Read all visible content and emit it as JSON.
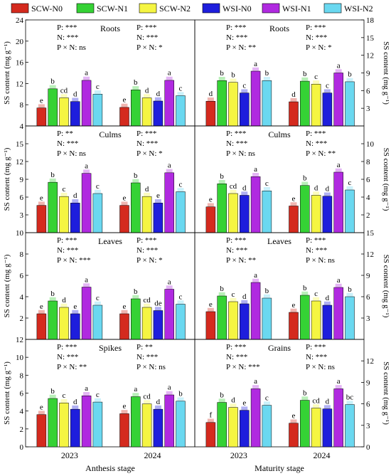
{
  "legend": [
    {
      "name": "SCW-N0",
      "color": "#d42a1e"
    },
    {
      "name": "SCW-N1",
      "color": "#35d235"
    },
    {
      "name": "SCW-N2",
      "color": "#f5f542"
    },
    {
      "name": "WSI-N0",
      "color": "#1e1edc"
    },
    {
      "name": "WSI-N1",
      "color": "#b02ae0"
    },
    {
      "name": "WSI-N2",
      "color": "#6ad8f0"
    }
  ],
  "y_axis_label": "SS content (mg g⁻¹)",
  "x_axis": {
    "years": [
      "2023",
      "2024"
    ],
    "stages": [
      "Anthesis stage",
      "Maturity stage"
    ]
  },
  "chart_data": [
    {
      "type": "bar",
      "row": 0,
      "col": 0,
      "organ": "Roots",
      "ylim": [
        4,
        24
      ],
      "ticks": [
        4,
        8,
        12,
        16,
        20,
        24
      ],
      "categories": [
        "2023",
        "2024"
      ],
      "series": [
        {
          "name": "SCW-N0",
          "values": [
            7.4,
            7.5
          ],
          "letters": [
            "e",
            "e"
          ]
        },
        {
          "name": "SCW-N1",
          "values": [
            11.0,
            10.8
          ],
          "letters": [
            "b",
            "b"
          ]
        },
        {
          "name": "SCW-N2",
          "values": [
            9.3,
            9.3
          ],
          "letters": [
            "cd",
            "d"
          ]
        },
        {
          "name": "WSI-N0",
          "values": [
            8.6,
            8.7
          ],
          "letters": [
            "d",
            "d"
          ]
        },
        {
          "name": "WSI-N1",
          "values": [
            12.6,
            12.6
          ],
          "letters": [
            "a",
            "a"
          ]
        },
        {
          "name": "WSI-N2",
          "values": [
            10.0,
            9.7
          ],
          "letters": [
            "c",
            "c"
          ]
        }
      ],
      "stats": [
        [
          "P: ***",
          "N: ***",
          "P × N: ns"
        ],
        [
          "P: ***",
          "N: ***",
          "P × N: *"
        ]
      ]
    },
    {
      "type": "bar",
      "row": 0,
      "col": 1,
      "organ": "Roots",
      "ylim": [
        0,
        18
      ],
      "ticks": [
        3,
        6,
        9,
        12,
        15,
        18
      ],
      "categories": [
        "2023",
        "2024"
      ],
      "series": [
        {
          "name": "SCW-N0",
          "values": [
            4.2,
            4.1
          ],
          "letters": [
            "d",
            "d"
          ]
        },
        {
          "name": "SCW-N1",
          "values": [
            7.7,
            7.6
          ],
          "letters": [
            "b",
            "b"
          ]
        },
        {
          "name": "SCW-N2",
          "values": [
            7.4,
            7.1
          ],
          "letters": [
            "b",
            "c"
          ]
        },
        {
          "name": "WSI-N0",
          "values": [
            5.6,
            5.6
          ],
          "letters": [
            "c",
            "c"
          ]
        },
        {
          "name": "WSI-N1",
          "values": [
            9.3,
            9.0
          ],
          "letters": [
            "a",
            "a"
          ]
        },
        {
          "name": "WSI-N2",
          "values": [
            7.7,
            7.5
          ],
          "letters": [
            "b",
            "b"
          ]
        }
      ],
      "stats": [
        [
          "P: ***",
          "N: ***",
          "P × N: **"
        ],
        [
          "P: ***",
          "N: ***",
          "P × N: *"
        ]
      ]
    },
    {
      "type": "bar",
      "row": 1,
      "col": 0,
      "organ": "Culms",
      "ylim": [
        0,
        18
      ],
      "ticks": [
        3,
        6,
        9,
        12,
        15
      ],
      "categories": [
        "2023",
        "2024"
      ],
      "series": [
        {
          "name": "SCW-N0",
          "values": [
            4.6,
            4.6
          ],
          "letters": [
            "e",
            "e"
          ]
        },
        {
          "name": "SCW-N1",
          "values": [
            8.5,
            8.4
          ],
          "letters": [
            "b",
            "b"
          ]
        },
        {
          "name": "SCW-N2",
          "values": [
            6.1,
            6.1
          ],
          "letters": [
            "c",
            "d"
          ]
        },
        {
          "name": "WSI-N0",
          "values": [
            5.0,
            5.0
          ],
          "letters": [
            "d",
            "e"
          ]
        },
        {
          "name": "WSI-N1",
          "values": [
            10.0,
            10.1
          ],
          "letters": [
            "a",
            "a"
          ]
        },
        {
          "name": "WSI-N2",
          "values": [
            6.6,
            6.9
          ],
          "letters": [
            "c",
            "c"
          ]
        }
      ],
      "stats": [
        [
          "P: **",
          "N: ***",
          "P × N: ns"
        ],
        [
          "P: ***",
          "N: ***",
          "P × N: *"
        ]
      ]
    },
    {
      "type": "bar",
      "row": 1,
      "col": 1,
      "organ": "Culms",
      "ylim": [
        0,
        12
      ],
      "ticks": [
        2,
        4,
        6,
        8,
        10
      ],
      "categories": [
        "2023",
        "2024"
      ],
      "series": [
        {
          "name": "SCW-N0",
          "values": [
            2.9,
            3.0
          ],
          "letters": [
            "e",
            "e"
          ]
        },
        {
          "name": "SCW-N1",
          "values": [
            5.5,
            5.3
          ],
          "letters": [
            "b",
            "b"
          ]
        },
        {
          "name": "SCW-N2",
          "values": [
            4.4,
            4.2
          ],
          "letters": [
            "cd",
            "d"
          ]
        },
        {
          "name": "WSI-N0",
          "values": [
            4.2,
            4.1
          ],
          "letters": [
            "d",
            "d"
          ]
        },
        {
          "name": "WSI-N1",
          "values": [
            6.3,
            6.8
          ],
          "letters": [
            "a",
            "a"
          ]
        },
        {
          "name": "WSI-N2",
          "values": [
            4.7,
            4.8
          ],
          "letters": [
            "c",
            "c"
          ]
        }
      ],
      "stats": [
        [
          "P: ***",
          "N: ***",
          "P × N: ns"
        ],
        [
          "P: ***",
          "N: ***",
          "P × N: **"
        ]
      ]
    },
    {
      "type": "bar",
      "row": 2,
      "col": 0,
      "organ": "Leaves",
      "ylim": [
        0,
        10
      ],
      "ticks": [
        2,
        4,
        6,
        8,
        10
      ],
      "categories": [
        "2023",
        "2024"
      ],
      "series": [
        {
          "name": "SCW-N0",
          "values": [
            2.4,
            2.4
          ],
          "letters": [
            "e",
            "e"
          ]
        },
        {
          "name": "SCW-N1",
          "values": [
            3.6,
            3.8
          ],
          "letters": [
            "b",
            "b"
          ]
        },
        {
          "name": "SCW-N2",
          "values": [
            3.0,
            3.0
          ],
          "letters": [
            "d",
            "cd"
          ]
        },
        {
          "name": "WSI-N0",
          "values": [
            2.4,
            2.7
          ],
          "letters": [
            "e",
            "de"
          ]
        },
        {
          "name": "WSI-N1",
          "values": [
            4.9,
            4.7
          ],
          "letters": [
            "a",
            "a"
          ]
        },
        {
          "name": "WSI-N2",
          "values": [
            3.2,
            3.3
          ],
          "letters": [
            "c",
            "c"
          ]
        }
      ],
      "stats": [
        [
          "P: ***",
          "N: ***",
          "P × N: ***"
        ],
        [
          "P: ***",
          "N: ***",
          "P × N: *"
        ]
      ]
    },
    {
      "type": "bar",
      "row": 2,
      "col": 1,
      "organ": "Leaves",
      "ylim": [
        0,
        15
      ],
      "ticks": [
        3,
        6,
        9,
        12,
        15
      ],
      "categories": [
        "2023",
        "2024"
      ],
      "series": [
        {
          "name": "SCW-N0",
          "values": [
            3.9,
            3.8
          ],
          "letters": [
            "e",
            "e"
          ]
        },
        {
          "name": "SCW-N1",
          "values": [
            6.1,
            6.2
          ],
          "letters": [
            "b",
            "b"
          ]
        },
        {
          "name": "SCW-N2",
          "values": [
            5.3,
            5.4
          ],
          "letters": [
            "c",
            "c"
          ]
        },
        {
          "name": "WSI-N0",
          "values": [
            5.0,
            4.8
          ],
          "letters": [
            "d",
            "d"
          ]
        },
        {
          "name": "WSI-N1",
          "values": [
            8.0,
            7.3
          ],
          "letters": [
            "a",
            "a"
          ]
        },
        {
          "name": "WSI-N2",
          "values": [
            5.8,
            6.0
          ],
          "letters": [
            "b",
            "b"
          ]
        }
      ],
      "stats": [
        [
          "P: ***",
          "N: ***",
          "P × N: **"
        ],
        [
          "P: ***",
          "N: ***",
          "P × N: ns"
        ]
      ]
    },
    {
      "type": "bar",
      "row": 3,
      "col": 0,
      "organ": "Spikes",
      "ylim": [
        0,
        12
      ],
      "ticks": [
        0,
        2,
        4,
        6,
        8,
        10,
        12
      ],
      "categories": [
        "2023",
        "2024"
      ],
      "series": [
        {
          "name": "SCW-N0",
          "values": [
            3.6,
            3.7
          ],
          "letters": [
            "e",
            "e"
          ]
        },
        {
          "name": "SCW-N1",
          "values": [
            5.4,
            5.6
          ],
          "letters": [
            "b",
            "a"
          ]
        },
        {
          "name": "SCW-N2",
          "values": [
            4.9,
            4.8
          ],
          "letters": [
            "c",
            "cd"
          ]
        },
        {
          "name": "WSI-N0",
          "values": [
            4.2,
            4.2
          ],
          "letters": [
            "d",
            "d"
          ]
        },
        {
          "name": "WSI-N1",
          "values": [
            5.7,
            5.8
          ],
          "letters": [
            "a",
            "a"
          ]
        },
        {
          "name": "WSI-N2",
          "values": [
            5.0,
            5.1
          ],
          "letters": [
            "c",
            "b"
          ]
        }
      ],
      "stats": [
        [
          "P: ***",
          "N: ***",
          "P × N: **"
        ],
        [
          "P: **",
          "N: ***",
          "P × N: ns"
        ]
      ]
    },
    {
      "type": "bar",
      "row": 3,
      "col": 1,
      "organ": "Grains",
      "ylim": [
        0,
        15
      ],
      "ticks": [
        0,
        3,
        6,
        9,
        12
      ],
      "categories": [
        "2023",
        "2024"
      ],
      "series": [
        {
          "name": "SCW-N0",
          "values": [
            3.4,
            3.3
          ],
          "letters": [
            "f",
            "e"
          ]
        },
        {
          "name": "SCW-N1",
          "values": [
            6.2,
            6.5
          ],
          "letters": [
            "b",
            "b"
          ]
        },
        {
          "name": "SCW-N2",
          "values": [
            5.5,
            5.4
          ],
          "letters": [
            "d",
            "cd"
          ]
        },
        {
          "name": "WSI-N0",
          "values": [
            5.1,
            5.3
          ],
          "letters": [
            "e",
            "d"
          ]
        },
        {
          "name": "WSI-N1",
          "values": [
            8.1,
            8.1
          ],
          "letters": [
            "a",
            "a"
          ]
        },
        {
          "name": "WSI-N2",
          "values": [
            5.8,
            5.9
          ],
          "letters": [
            "c",
            "bc"
          ]
        }
      ],
      "stats": [
        [
          "P: ***",
          "N: ***",
          "P × N: ***"
        ],
        [
          "P: ***",
          "N: ***",
          "P × N: ns"
        ]
      ]
    }
  ]
}
